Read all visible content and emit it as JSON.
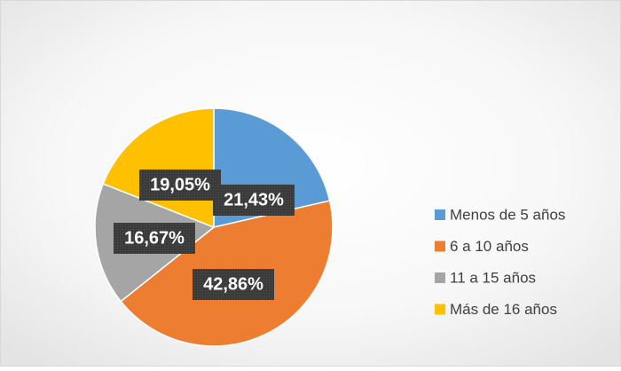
{
  "chart_data": {
    "type": "pie",
    "categories": [
      "Menos de 5 años",
      "6 a 10 años",
      "11 a 15 años",
      "Más de 16 años"
    ],
    "values": [
      21.43,
      42.86,
      16.67,
      19.05
    ],
    "value_labels": [
      "21,43%",
      "42,86%",
      "16,67%",
      "19,05%"
    ],
    "colors": [
      "#5b9bd5",
      "#ed7d31",
      "#a5a5a5",
      "#ffc000"
    ],
    "legend": "right"
  }
}
